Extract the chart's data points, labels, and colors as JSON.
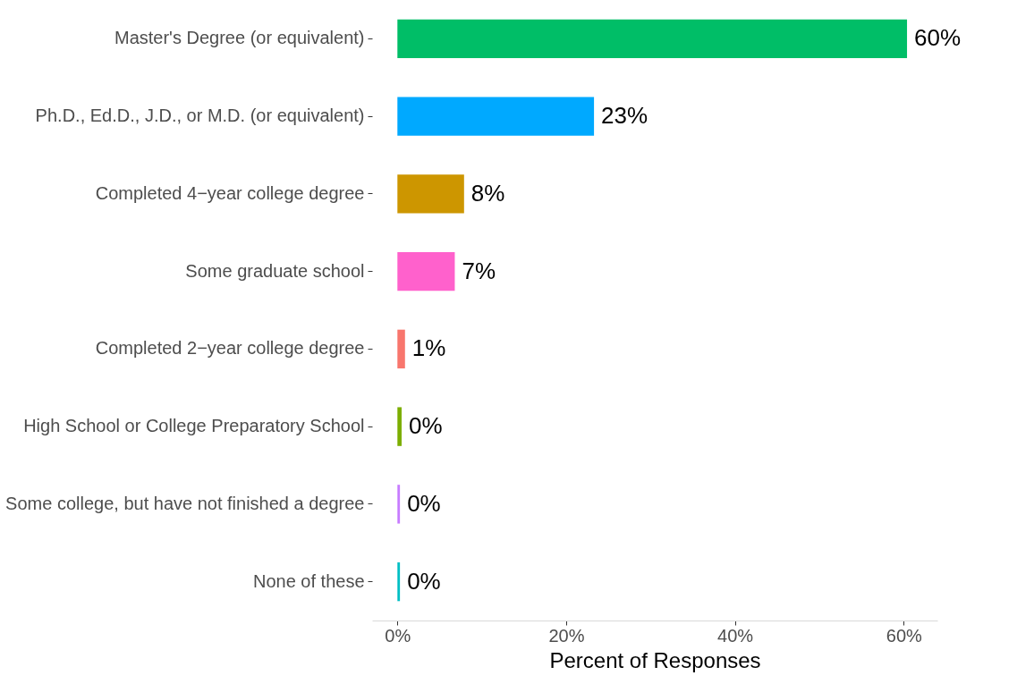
{
  "chart_data": {
    "type": "bar",
    "orientation": "horizontal",
    "xlabel": "Percent of Responses",
    "categories": [
      "Master's Degree (or equivalent)",
      "Ph.D., Ed.D., J.D., or M.D. (or equivalent)",
      "Completed 4−year college degree",
      "Some graduate school",
      "Completed 2−year college degree",
      "High School or College Preparatory School",
      "Some college, but have not finished a degree",
      "None of these"
    ],
    "values": [
      60.4,
      23.3,
      7.9,
      6.8,
      0.9,
      0.5,
      0.3,
      0.3
    ],
    "value_labels": [
      "60%",
      "23%",
      "8%",
      "7%",
      "1%",
      "0%",
      "0%",
      "0%"
    ],
    "colors": [
      "#00be67",
      "#00a9ff",
      "#cd9600",
      "#ff61cc",
      "#f8766d",
      "#7cae00",
      "#c77cff",
      "#00bfc4"
    ],
    "xlim": [
      -3,
      64
    ],
    "xticks": [
      {
        "value": 0,
        "label": "0%"
      },
      {
        "value": 20,
        "label": "20%"
      },
      {
        "value": 40,
        "label": "40%"
      },
      {
        "value": 60,
        "label": "60%"
      }
    ],
    "grid": false,
    "legend": false
  }
}
